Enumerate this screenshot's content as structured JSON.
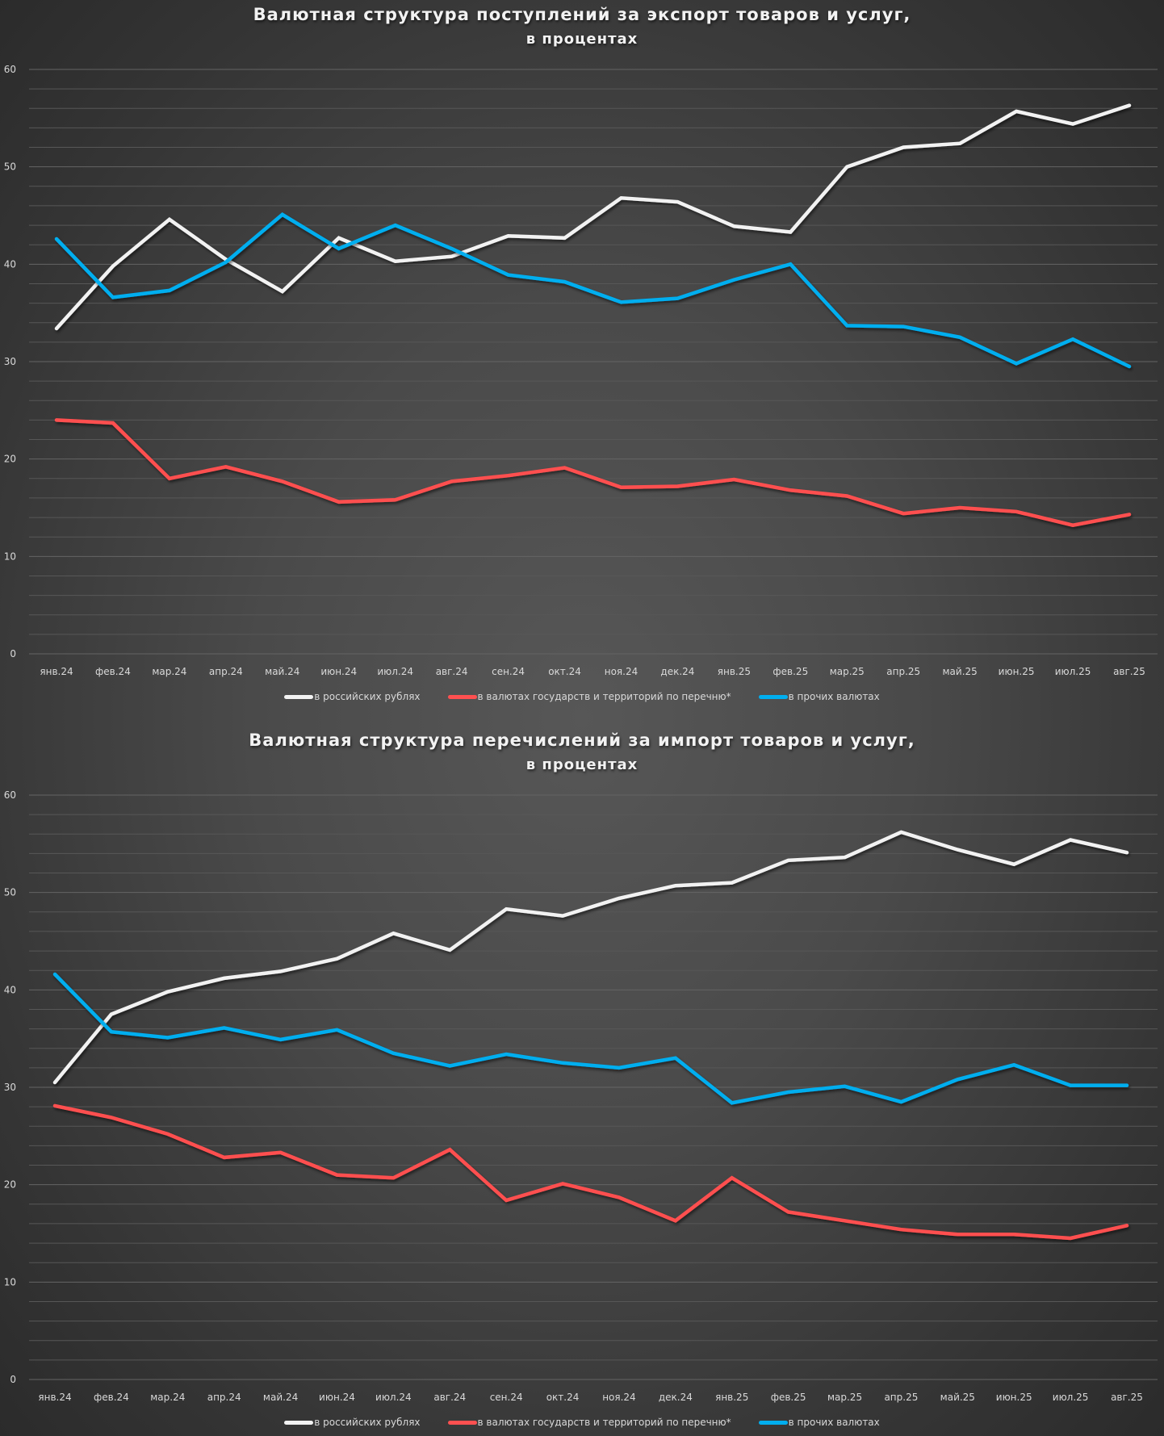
{
  "colors": {
    "rub": "#f2f2f2",
    "listed": "#ff5050",
    "other": "#00aeef",
    "grid": "#5e5e5e",
    "tick": "#d9d9d9"
  },
  "chart_data": [
    {
      "type": "line",
      "title": "Валютная структура поступлений за экспорт товаров и услуг,",
      "subtitle": "в процентах",
      "xlabel": "",
      "ylabel": "",
      "ylim": [
        0,
        60
      ],
      "yticks": [
        "0",
        "10",
        "20",
        "30",
        "40",
        "50",
        "60"
      ],
      "ytick_values": [
        0,
        10,
        20,
        30,
        40,
        50,
        60
      ],
      "minor_grid_step": 2,
      "grid": true,
      "legend_position": "bottom",
      "categories": [
        "янв.24",
        "фев.24",
        "мар.24",
        "апр.24",
        "май.24",
        "июн.24",
        "июл.24",
        "авг.24",
        "сен.24",
        "окт.24",
        "ноя.24",
        "дек.24",
        "янв.25",
        "фев.25",
        "мар.25",
        "апр.25",
        "май.25",
        "июн.25",
        "июл.25",
        "авг.25"
      ],
      "series": [
        {
          "name": "в российских рублях",
          "color_key": "rub",
          "values": [
            33.4,
            39.8,
            44.6,
            40.5,
            37.2,
            42.7,
            40.3,
            40.8,
            42.9,
            42.7,
            46.8,
            46.4,
            43.9,
            43.3,
            50.0,
            52.0,
            52.4,
            55.7,
            54.4,
            56.3
          ]
        },
        {
          "name": "в валютах государств и территорий по перечню*",
          "color_key": "listed",
          "values": [
            24.0,
            23.7,
            18.0,
            19.2,
            17.7,
            15.6,
            15.8,
            17.7,
            18.3,
            19.1,
            17.1,
            17.2,
            17.9,
            16.8,
            16.2,
            14.4,
            15.0,
            14.6,
            13.2,
            14.3
          ]
        },
        {
          "name": "в прочих валютах",
          "color_key": "other",
          "values": [
            42.6,
            36.6,
            37.3,
            40.2,
            45.1,
            41.6,
            44.0,
            41.6,
            38.9,
            38.2,
            36.1,
            36.5,
            38.4,
            40.0,
            33.7,
            33.6,
            32.5,
            29.8,
            32.3,
            29.5
          ]
        }
      ]
    },
    {
      "type": "line",
      "title": "Валютная структура перечислений за импорт товаров и услуг,",
      "subtitle": "в процентах",
      "xlabel": "",
      "ylabel": "",
      "ylim": [
        0,
        60
      ],
      "yticks": [
        "0",
        "10",
        "20",
        "30",
        "40",
        "50",
        "60"
      ],
      "ytick_values": [
        0,
        10,
        20,
        30,
        40,
        50,
        60
      ],
      "minor_grid_step": 2,
      "grid": true,
      "legend_position": "bottom",
      "categories": [
        "янв.24",
        "фев.24",
        "мар.24",
        "апр.24",
        "май.24",
        "июн.24",
        "июл.24",
        "авг.24",
        "сен.24",
        "окт.24",
        "ноя.24",
        "дек.24",
        "янв.25",
        "фев.25",
        "мар.25",
        "апр.25",
        "май.25",
        "июн.25",
        "июл.25",
        "авг.25"
      ],
      "series": [
        {
          "name": "в российских рублях",
          "color_key": "rub",
          "values": [
            30.5,
            37.5,
            39.8,
            41.2,
            41.9,
            43.2,
            45.8,
            44.1,
            48.3,
            47.6,
            49.4,
            50.7,
            51.0,
            53.3,
            53.6,
            56.2,
            54.4,
            52.9,
            55.4,
            54.1
          ]
        },
        {
          "name": "в валютах государств и территорий по перечню*",
          "color_key": "listed",
          "values": [
            28.1,
            26.9,
            25.2,
            22.8,
            23.3,
            21.0,
            20.7,
            23.6,
            18.4,
            20.1,
            18.7,
            16.3,
            20.7,
            17.2,
            16.3,
            15.4,
            14.9,
            14.9,
            14.5,
            15.8
          ]
        },
        {
          "name": "в прочих валютах",
          "color_key": "other",
          "values": [
            41.6,
            35.7,
            35.1,
            36.1,
            34.9,
            35.9,
            33.5,
            32.2,
            33.4,
            32.5,
            32.0,
            33.0,
            28.4,
            29.5,
            30.1,
            28.5,
            30.8,
            32.3,
            30.2,
            30.2
          ]
        }
      ]
    }
  ]
}
